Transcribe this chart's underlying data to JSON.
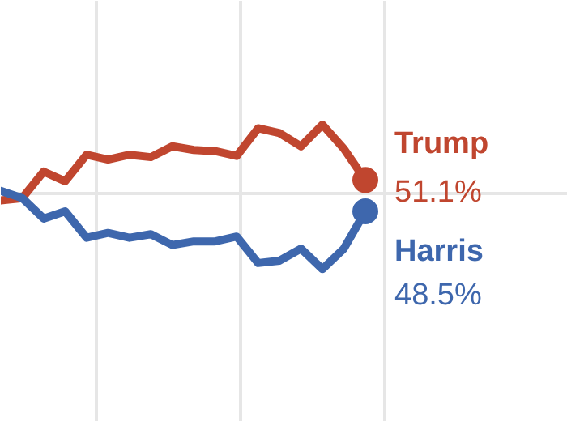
{
  "chart_data": {
    "type": "line",
    "ylim": [
      31,
      66
    ],
    "categories": [
      null,
      null,
      null,
      null,
      null,
      null,
      null,
      null,
      null,
      null,
      null,
      null,
      null,
      null,
      null,
      null,
      null,
      null
    ],
    "yticks": [
      {
        "value": 50,
        "label": null
      }
    ],
    "grid": true,
    "tick_labels": false,
    "line_style": "solid",
    "series": [
      {
        "name": "Trump",
        "color": "#c0462f",
        "values": [
          49.4,
          49.6,
          51.8,
          51.0,
          53.2,
          52.8,
          53.2,
          53.0,
          53.9,
          53.6,
          53.5,
          53.1,
          55.4,
          55.0,
          53.9,
          55.7,
          53.7,
          51.1
        ],
        "value_labels": [
          null,
          null,
          null,
          null,
          null,
          null,
          null,
          null,
          null,
          null,
          null,
          null,
          null,
          null,
          null,
          null,
          null,
          "51.1%"
        ]
      },
      {
        "name": "Harris",
        "color": "#3e67ad",
        "values": [
          50.2,
          49.6,
          47.9,
          48.5,
          46.3,
          46.7,
          46.3,
          46.6,
          45.7,
          46.0,
          46.0,
          46.4,
          44.2,
          44.4,
          45.4,
          43.7,
          45.4,
          48.5
        ],
        "value_labels": [
          null,
          null,
          null,
          null,
          null,
          null,
          null,
          null,
          null,
          null,
          null,
          null,
          null,
          null,
          null,
          null,
          null,
          "48.5%"
        ]
      }
    ]
  }
}
